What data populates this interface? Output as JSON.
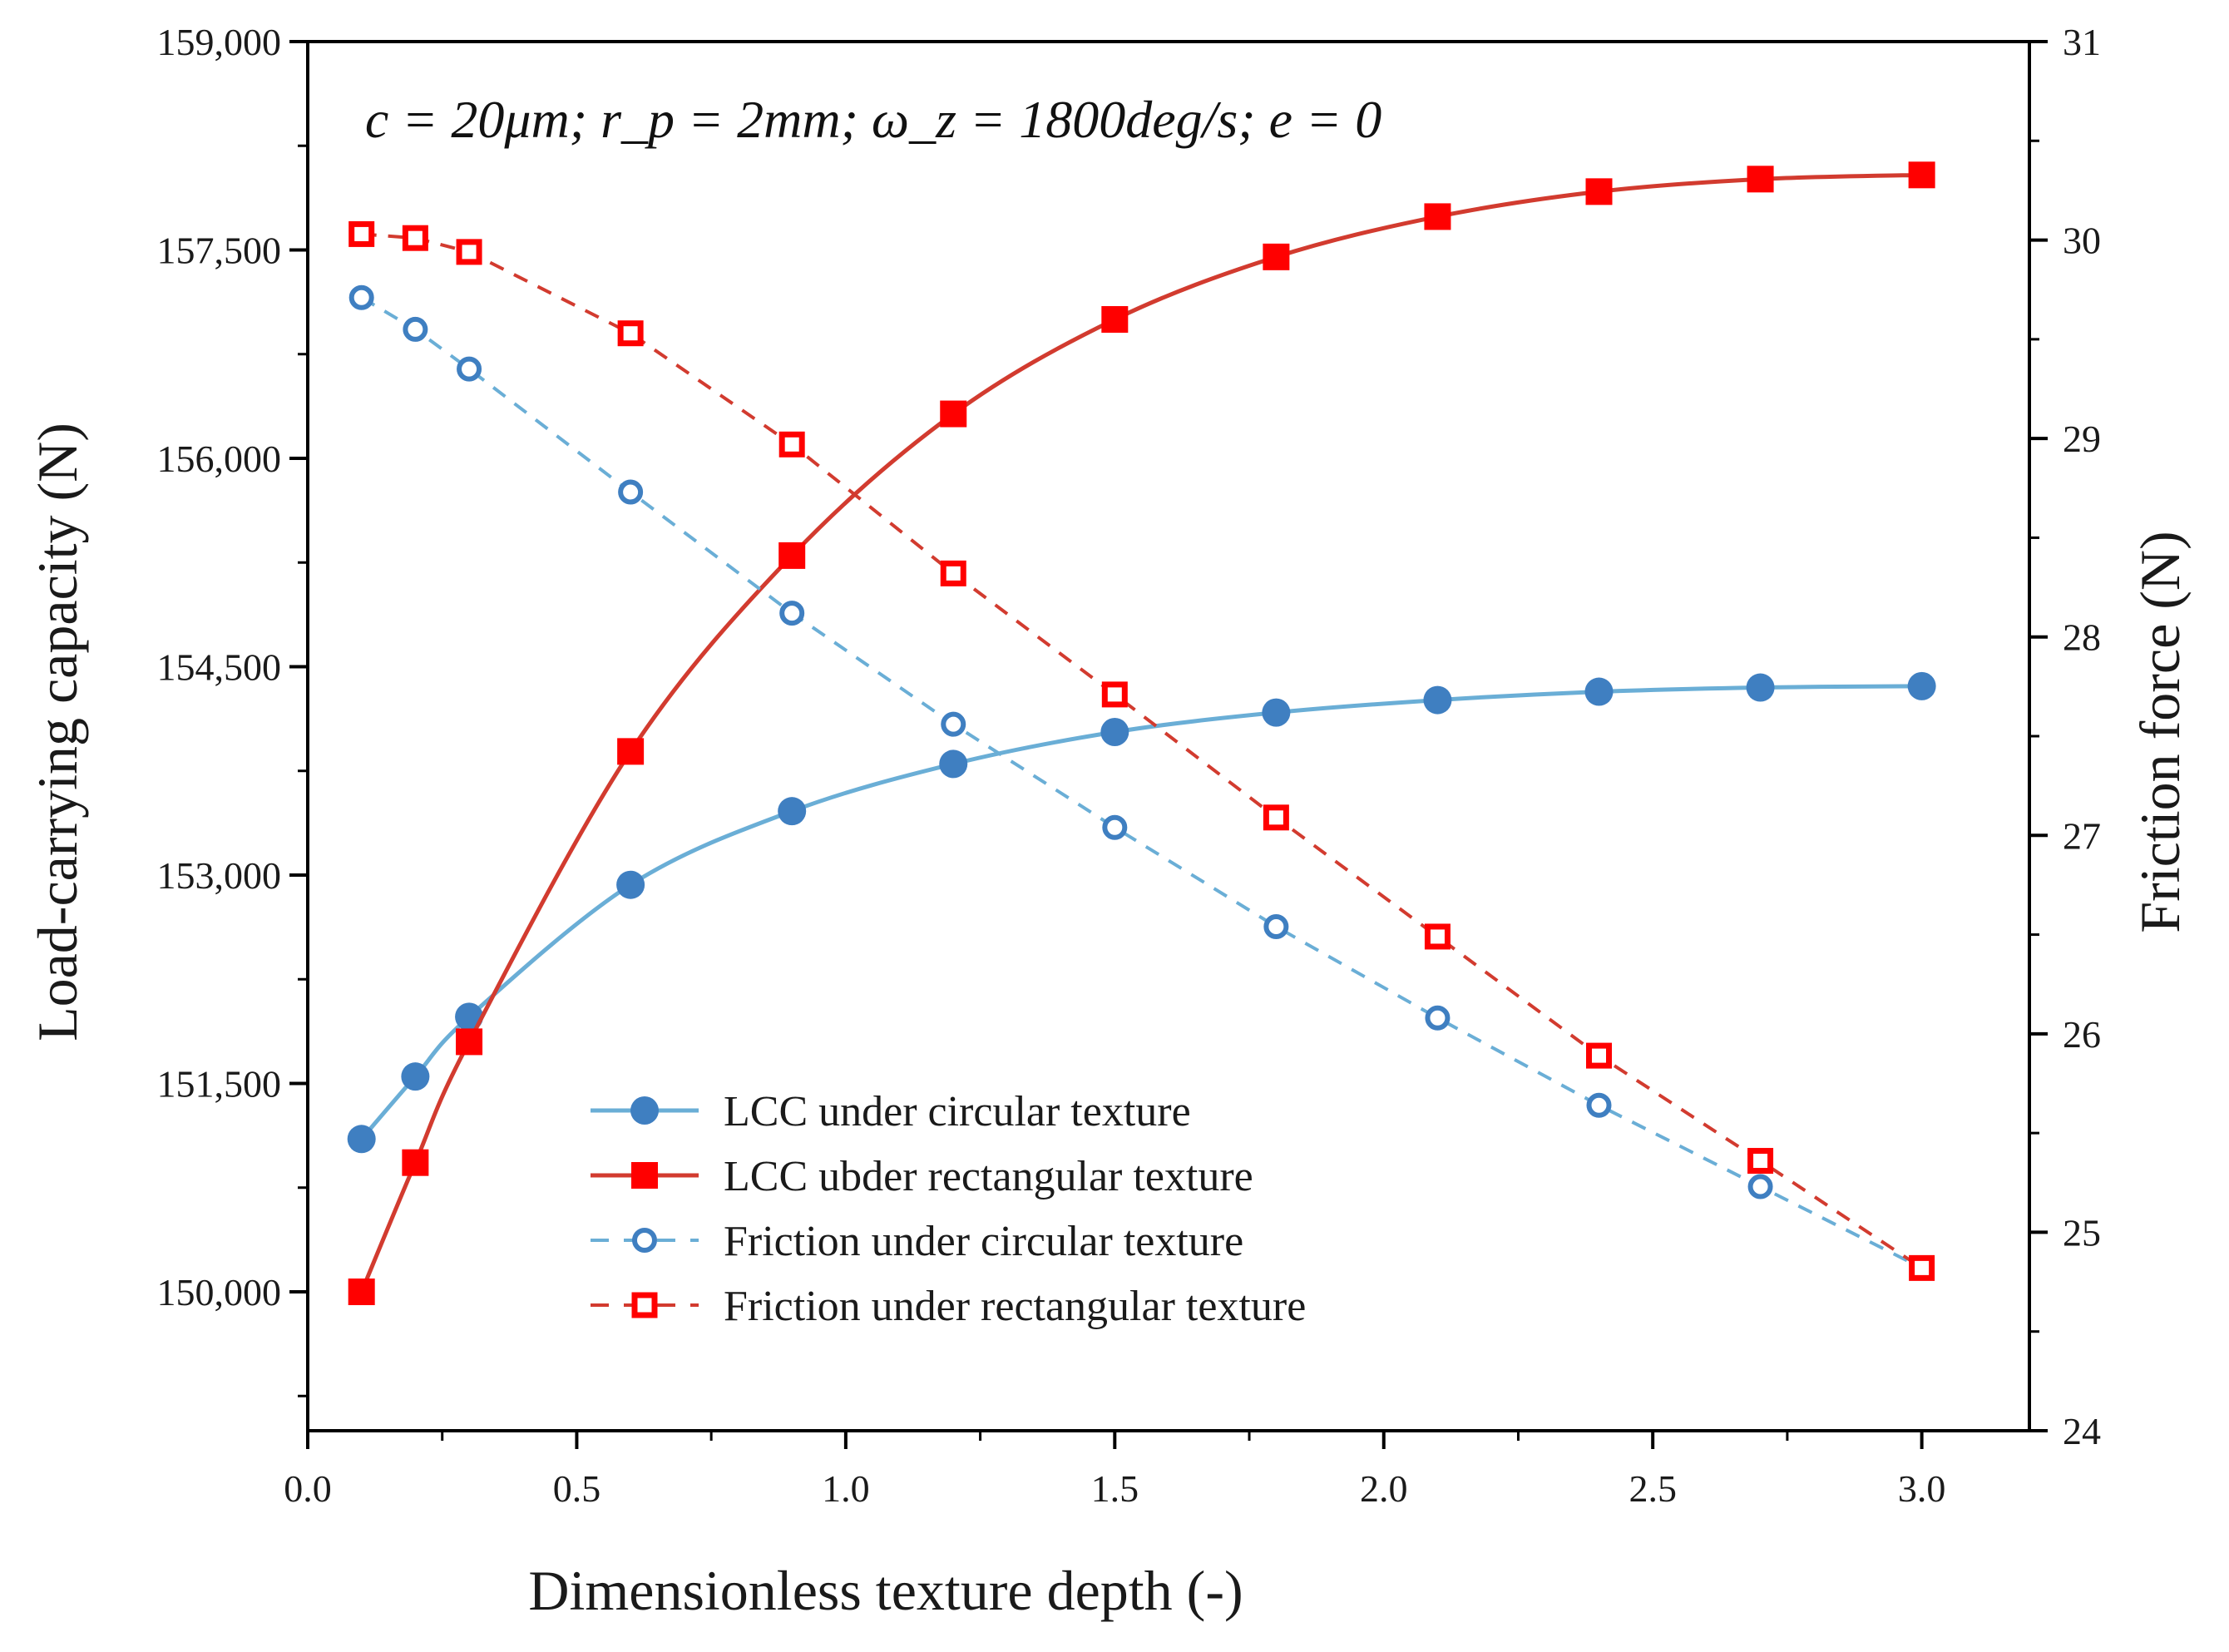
{
  "colors": {
    "circular": "#6aaed6",
    "circular_marker": "#3f7fc1",
    "rectangular": "#d23b2f",
    "rectangular_marker": "#ff0000",
    "axis": "#000000"
  },
  "chart_data": {
    "type": "line",
    "title": "",
    "annotation": "c = 20μm; r_p = 2mm; ω_z = 1800deg/s; e = 0",
    "xlabel": "Dimensionless texture depth (-)",
    "ylabel_left": "Load-carrying capacity (N)",
    "ylabel_right": "Friction force (N)",
    "xlim": [
      0.0,
      3.2
    ],
    "ylim_left": [
      149000,
      159000
    ],
    "ylim_right": [
      24,
      31
    ],
    "x_ticks": [
      0.0,
      0.5,
      1.0,
      1.5,
      2.0,
      2.5,
      3.0
    ],
    "x_tick_labels": [
      "0.0",
      "0.5",
      "1.0",
      "1.5",
      "2.0",
      "2.5",
      "3.0"
    ],
    "y_left_ticks": [
      150000,
      151500,
      153000,
      154500,
      156000,
      157500,
      159000
    ],
    "y_left_tick_labels": [
      "150,000",
      "151,500",
      "153,000",
      "154,500",
      "156,000",
      "157,500",
      "159,000"
    ],
    "y_right_ticks": [
      24,
      25,
      26,
      27,
      28,
      29,
      30,
      31
    ],
    "y_right_tick_labels": [
      "24",
      "25",
      "26",
      "27",
      "28",
      "29",
      "30",
      "31"
    ],
    "legend_position": "lower-center",
    "x": [
      0.1,
      0.2,
      0.3,
      0.6,
      0.9,
      1.2,
      1.5,
      1.8,
      2.1,
      2.4,
      2.7,
      3.0
    ],
    "series": [
      {
        "name": "LCC under circular texture",
        "axis": "left",
        "style": "solid-circle",
        "values": [
          151100,
          151550,
          151980,
          152930,
          153460,
          153800,
          154030,
          154170,
          154260,
          154320,
          154350,
          154360
        ]
      },
      {
        "name": "LCC ubder rectangular texture",
        "axis": "left",
        "style": "solid-square",
        "values": [
          150000,
          150930,
          151800,
          153890,
          155300,
          156320,
          157000,
          157450,
          157740,
          157920,
          158010,
          158040
        ]
      },
      {
        "name": "Friction under circular texture",
        "axis": "right",
        "style": "dashed-open-circle",
        "values": [
          29.71,
          29.55,
          29.35,
          28.73,
          28.12,
          27.56,
          27.04,
          26.54,
          26.08,
          25.64,
          25.23,
          24.82
        ]
      },
      {
        "name": "Friction under  rectangular texture",
        "axis": "right",
        "style": "dashed-open-square",
        "values": [
          30.03,
          30.01,
          29.94,
          29.53,
          28.97,
          28.32,
          27.71,
          27.09,
          26.49,
          25.89,
          25.36,
          24.82
        ]
      }
    ]
  }
}
